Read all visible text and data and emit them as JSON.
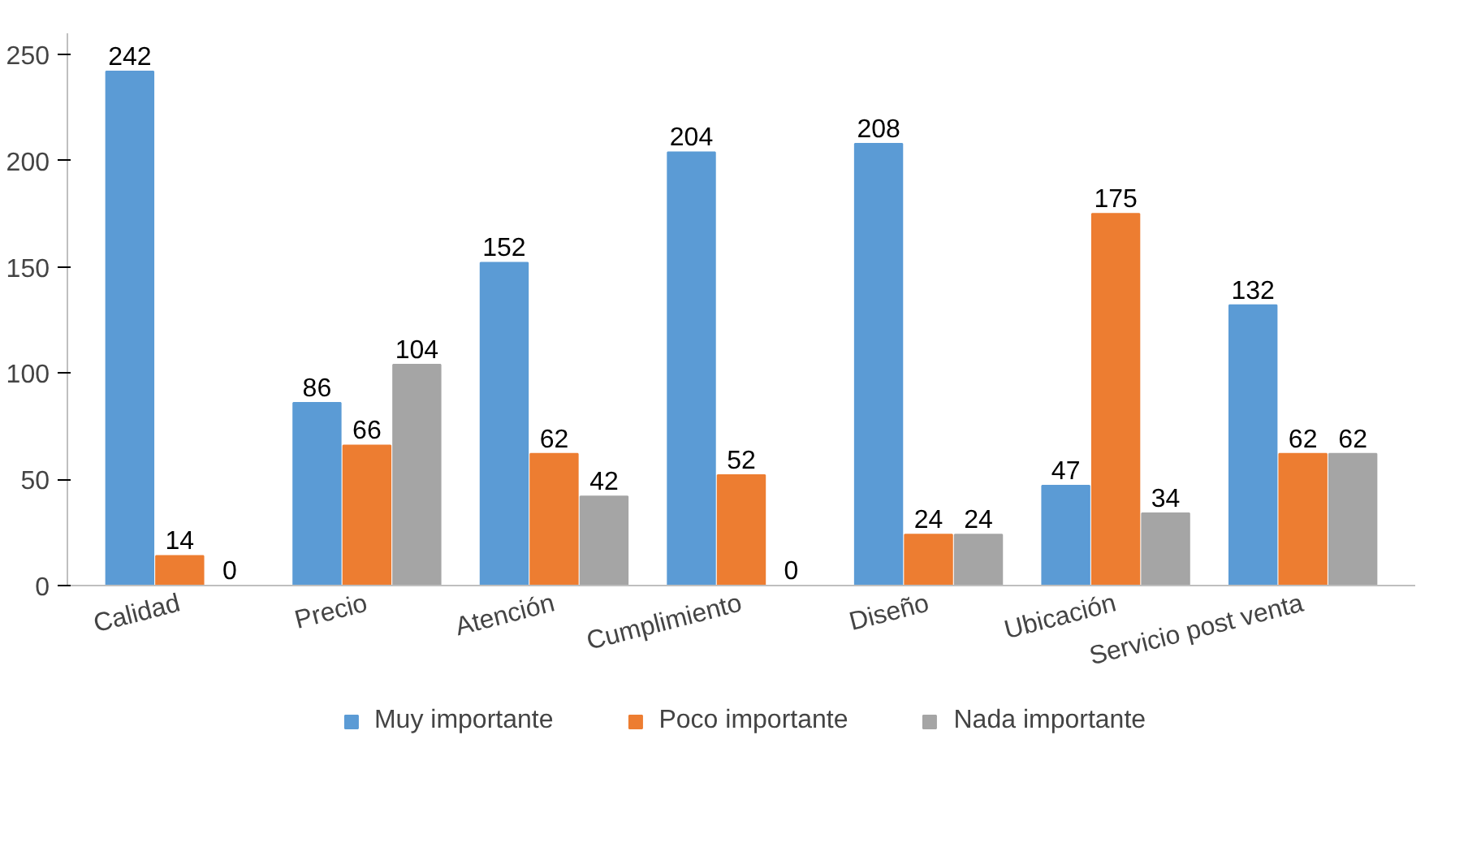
{
  "chart_data": {
    "type": "bar",
    "categories": [
      "Calidad",
      "Precio",
      "Atención",
      "Cumplimiento",
      "Diseño",
      "Ubicación",
      "Servicio post venta"
    ],
    "series": [
      {
        "name": "Muy importante",
        "color": "#5b9bd5",
        "values": [
          242,
          86,
          152,
          204,
          208,
          47,
          132
        ]
      },
      {
        "name": "Poco importante",
        "color": "#ed7d31",
        "values": [
          14,
          66,
          62,
          52,
          24,
          175,
          62
        ]
      },
      {
        "name": "Nada importante",
        "color": "#a5a5a5",
        "values": [
          0,
          104,
          42,
          0,
          24,
          34,
          62
        ]
      }
    ],
    "ylim": [
      0,
      260
    ],
    "yticks": [
      0,
      50,
      100,
      150,
      200,
      250
    ],
    "grid": false,
    "legend": "bottom",
    "data_labels": true
  }
}
